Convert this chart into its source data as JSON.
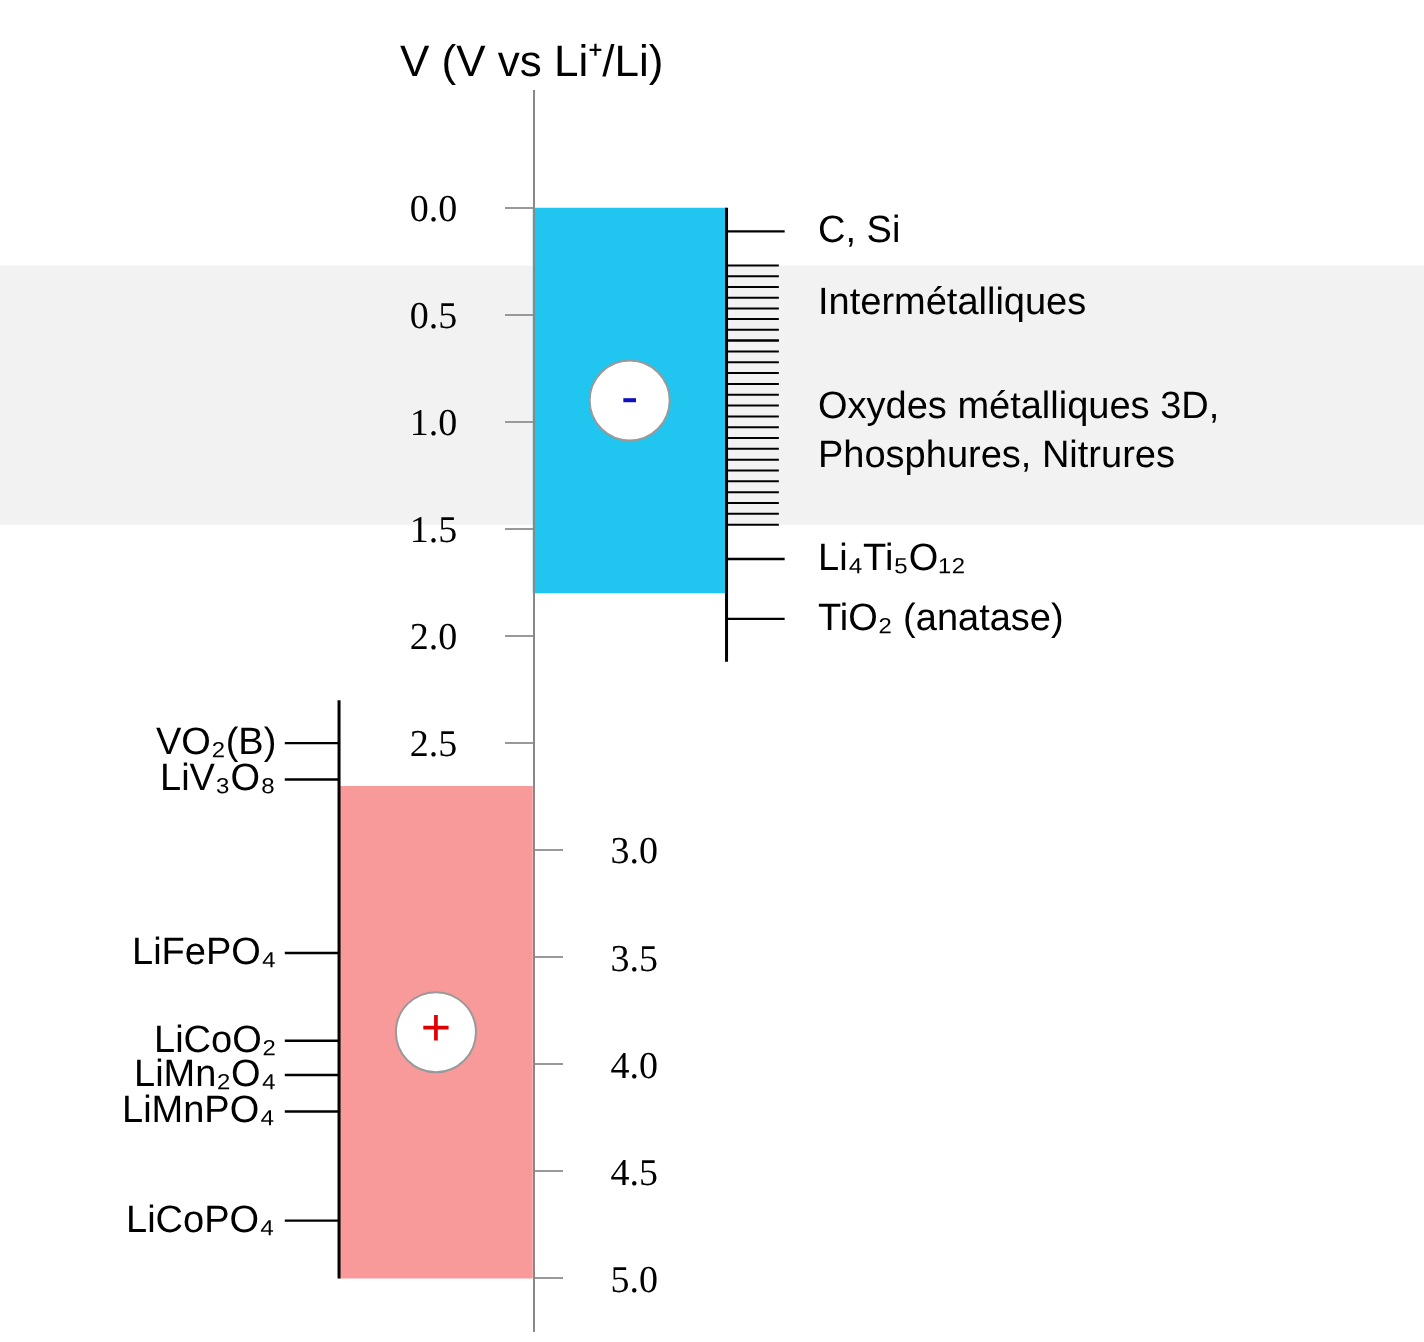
{
  "chart_data": {
    "type": "bar",
    "ylabel": "V (V vs Li⁺/Li)",
    "categories": [
      null,
      null
    ],
    "base": [
      2.7,
      0.0
    ],
    "values": [
      2.3,
      1.8
    ],
    "colors": [
      "#f99a9a",
      "#20c6f0"
    ],
    "value_labels": [
      "+",
      "-"
    ],
    "ylim": [
      5.25,
      -0.55
    ],
    "yticks": [
      {
        "value": 0,
        "label": "0.0"
      },
      0.5,
      {
        "value": 1,
        "label": "1.0"
      },
      1.5,
      {
        "value": 2,
        "label": "2.0"
      },
      2.5
    ],
    "y2lim": [
      5.25,
      -0.55
    ],
    "y2ticks": [
      {
        "value": 3,
        "label": "3.0"
      },
      3.5,
      {
        "value": 4,
        "label": "4.0"
      },
      4.5,
      {
        "value": 5,
        "label": "5.0"
      }
    ],
    "bands": [
      {
        "axis": "y",
        "from": 0.27,
        "to": 0.62,
        "label": "Intermétalliques",
        "color": "#000000"
      },
      {
        "axis": "y",
        "from": 0.62,
        "to": 1.48,
        "label": "Oxydes métalliques 3D,\nPhosphures, Nitrures",
        "color": "#000000"
      }
    ],
    "ref_lines": [
      {
        "axis": "y",
        "value": 0.11,
        "label": "C, Si"
      },
      {
        "axis": "y",
        "value": 1.64,
        "label": "Li₄Ti₅O₁₂"
      },
      {
        "axis": "y",
        "value": 1.92,
        "label": "TiO₂ (anatase)"
      },
      {
        "axis": "y",
        "value": 2.5,
        "label": "VO₂(B)"
      },
      {
        "axis": "y",
        "value": 2.67,
        "label": "LiV₃O₈"
      },
      {
        "axis": "y",
        "value": 3.48,
        "label": "LiFePO₄"
      },
      {
        "axis": "y",
        "value": 3.89,
        "label": "LiCoO₂"
      },
      {
        "axis": "y",
        "value": 4.05,
        "label": "LiMn₂O₄"
      },
      {
        "axis": "y",
        "value": 4.22,
        "label": "LiMnPO₄"
      },
      {
        "axis": "y",
        "value": 4.73,
        "label": "LiCoPO₄"
      }
    ]
  }
}
